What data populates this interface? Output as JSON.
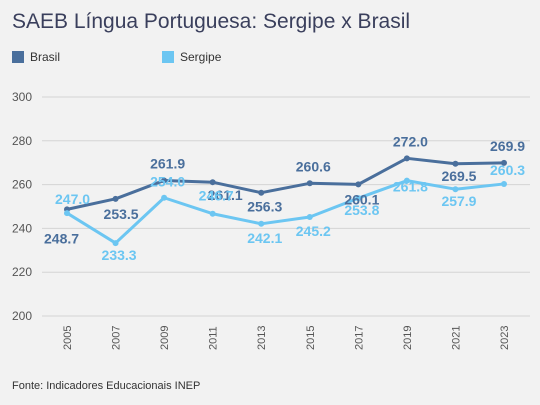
{
  "title": "SAEB Língua Portuguesa: Sergipe x Brasil",
  "source": "Fonte: Indicadores Educacionais INEP",
  "chart_data": {
    "type": "line",
    "title": "SAEB Língua Portuguesa: Sergipe x Brasil",
    "xlabel": "",
    "ylabel": "",
    "categories": [
      "2005",
      "2007",
      "2009",
      "2011",
      "2013",
      "2015",
      "2017",
      "2019",
      "2021",
      "2023"
    ],
    "ylim": [
      200,
      300
    ],
    "yticks": [
      200,
      220,
      240,
      260,
      280,
      300
    ],
    "grid": true,
    "legend_position": "top-left",
    "series": [
      {
        "name": "Brasil",
        "color": "#4a6f9c",
        "values": [
          248.7,
          253.5,
          261.9,
          261.1,
          256.3,
          260.6,
          260.1,
          272.0,
          269.5,
          269.9
        ],
        "labels": [
          "248.7",
          "253.5",
          "261.9",
          "261.1",
          "256.3",
          "260.6",
          "260.1",
          "272.0",
          "269.5",
          "269.9"
        ]
      },
      {
        "name": "Sergipe",
        "color": "#6cc6f2",
        "values": [
          247.0,
          233.3,
          254.0,
          246.7,
          242.1,
          245.2,
          253.8,
          261.8,
          257.9,
          260.3
        ],
        "labels": [
          "247.0",
          "233.3",
          "254.0",
          "246.7",
          "242.1",
          "245.2",
          "253.8",
          "261.8",
          "257.9",
          "260.3"
        ]
      }
    ]
  }
}
